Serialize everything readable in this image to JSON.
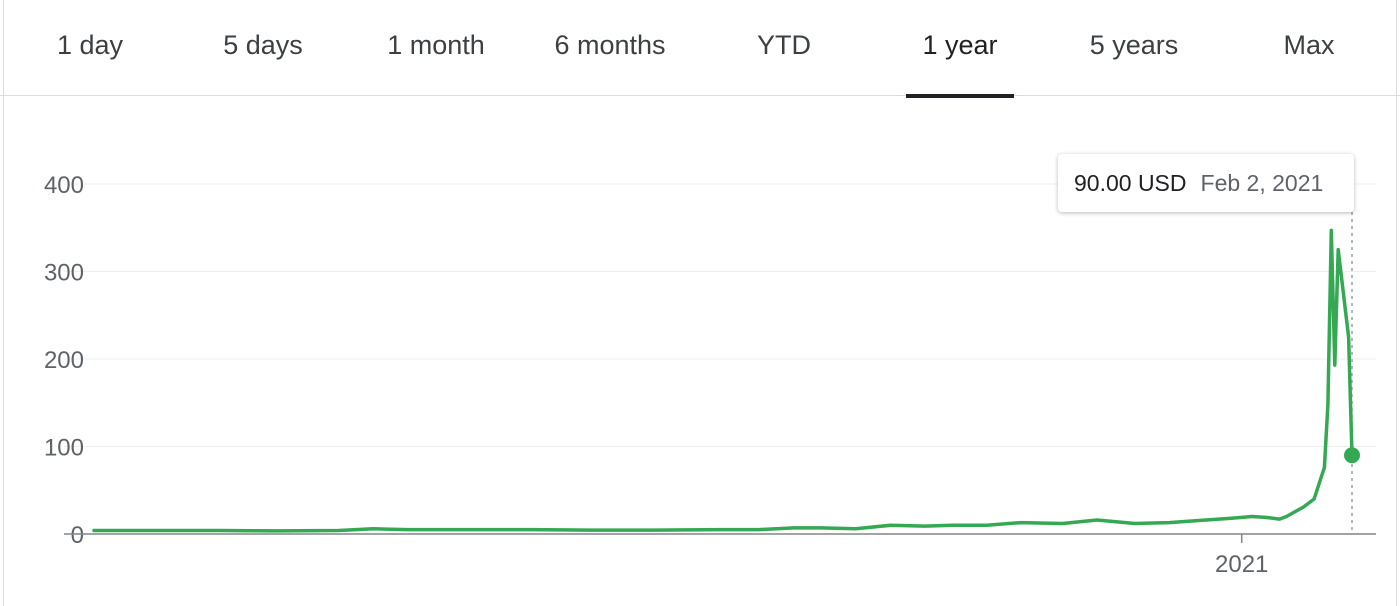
{
  "tabs": [
    {
      "label": "1 day"
    },
    {
      "label": "5 days"
    },
    {
      "label": "1 month"
    },
    {
      "label": "6 months"
    },
    {
      "label": "YTD"
    },
    {
      "label": "1 year",
      "active": true
    },
    {
      "label": "5 years"
    },
    {
      "label": "Max"
    }
  ],
  "tooltip": {
    "price": "90.00 USD",
    "date": "Feb 2, 2021"
  },
  "chart_data": {
    "type": "line",
    "title": "",
    "xlabel": "",
    "ylabel": "",
    "ylim": [
      0,
      400
    ],
    "yticks": [
      "0",
      "100",
      "200",
      "300",
      "400"
    ],
    "xticks": [
      {
        "label": "2021",
        "x": "2021-01-01"
      }
    ],
    "xlim": [
      "2020-02-03",
      "2021-02-02"
    ],
    "grid": true,
    "line_color": "#34a853",
    "series": [
      {
        "x": [
          "2020-02-03",
          "2020-02-21",
          "2020-03-10",
          "2020-03-27",
          "2020-04-14",
          "2020-04-24",
          "2020-05-04",
          "2020-05-22",
          "2020-06-09",
          "2020-06-26",
          "2020-07-14",
          "2020-08-03",
          "2020-08-14",
          "2020-08-24",
          "2020-09-01",
          "2020-09-11",
          "2020-09-21",
          "2020-10-01",
          "2020-10-09",
          "2020-10-19",
          "2020-10-29",
          "2020-11-10",
          "2020-11-20",
          "2020-12-01",
          "2020-12-11",
          "2020-12-18",
          "2020-12-29",
          "2021-01-04",
          "2021-01-08",
          "2021-01-12",
          "2021-01-14",
          "2021-01-19",
          "2021-01-22",
          "2021-01-25",
          "2021-01-26",
          "2021-01-27",
          "2021-01-28",
          "2021-01-29",
          "2021-02-01",
          "2021-02-02"
        ],
        "y": [
          4,
          4,
          4,
          3.5,
          4,
          6,
          5,
          5,
          5,
          4.5,
          4.5,
          5,
          5,
          7,
          7,
          6,
          10,
          9,
          10,
          10,
          13,
          12,
          16,
          12,
          13,
          15,
          18,
          20,
          19,
          17,
          20,
          31,
          40,
          76,
          148,
          347,
          193,
          325,
          225,
          90
        ]
      }
    ],
    "highlight": {
      "x": "2021-02-02",
      "y": 90
    }
  }
}
